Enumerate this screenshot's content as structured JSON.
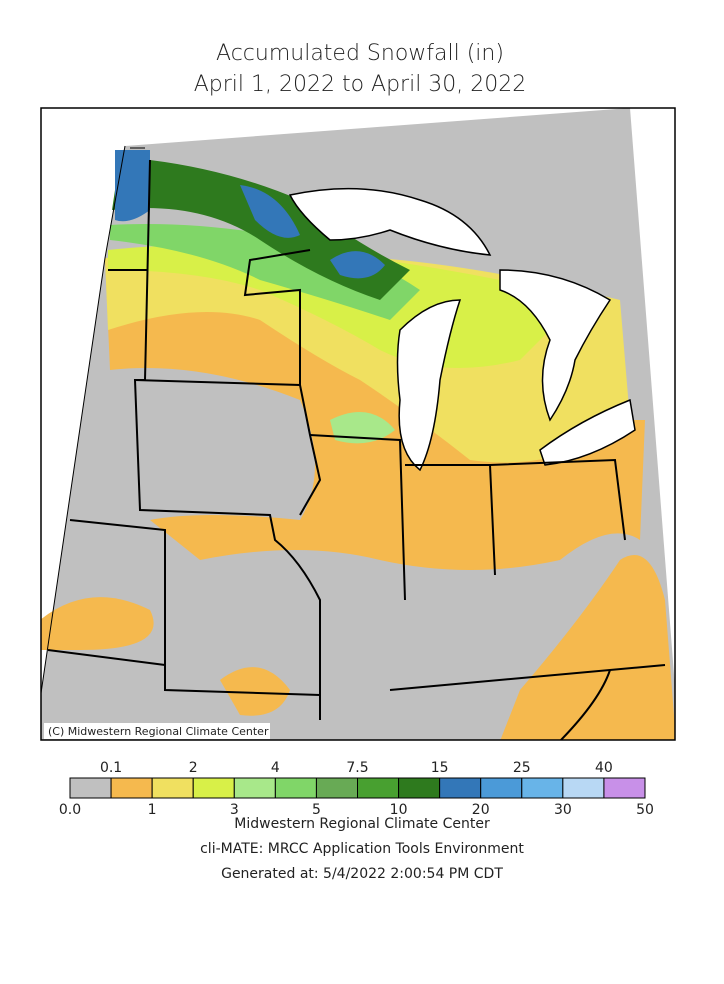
{
  "title": {
    "lines": [
      "Accumulated Snowfall (in)",
      "April 1, 2022 to April 30, 2022"
    ]
  },
  "map": {
    "credit": "(C) Midwestern Regional Climate Center"
  },
  "legend": {
    "breaks": [
      {
        "value": 0,
        "label": "0.0"
      },
      0.1,
      1,
      2,
      3,
      4,
      5,
      7.5,
      10,
      15,
      20,
      25,
      30,
      40,
      50
    ],
    "colors": [
      "#c0c0c0",
      "#f5b94e",
      "#f0e060",
      "#d8f048",
      "#a8e88a",
      "#80d668",
      "#68aa55",
      "#48a030",
      "#2e7a1e",
      "#3377b8",
      "#4b9ad8",
      "#68b4e8",
      "#b8d8f4",
      "#c890e8"
    ]
  },
  "footer": [
    "Midwestern Regional Climate Center",
    "cli-MATE: MRCC Application Tools Environment",
    "Generated at: 5/4/2022 2:00:54 PM CDT"
  ]
}
